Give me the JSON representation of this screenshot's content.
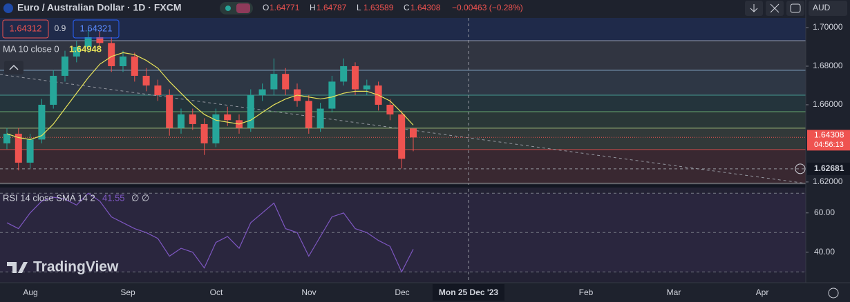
{
  "header": {
    "symbol": "Euro / Australian Dollar · 1D · FXCM",
    "o_label": "O",
    "h_label": "H",
    "l_label": "L",
    "c_label": "C",
    "change": "−0.00463 (−0.28%)",
    "bid": "1.64312",
    "spread": "0.9",
    "ask": "1.64321",
    "currency": "AUD",
    "ma_label": "MA 10 close 0",
    "rsi_label": "RSI 14 close SMA 14 2",
    "rsi_extra": "∅ ∅",
    "logo": "TradingView",
    "countdown": "04:56:13",
    "crosshair_price": "1.62681",
    "crosshair_date": "Mon 25 Dec '23"
  },
  "chart_data": {
    "type": "candlestick",
    "open": [
      1.64,
      1.645,
      1.63,
      1.642,
      1.66,
      1.675,
      1.685,
      1.69,
      1.695,
      1.692,
      1.68,
      1.685,
      1.675,
      1.67,
      1.665,
      1.648,
      1.655,
      1.65,
      1.64,
      1.655,
      1.652,
      1.648,
      1.665,
      1.668,
      1.676,
      1.668,
      1.662,
      1.648,
      1.658,
      1.672,
      1.68,
      1.668,
      1.67,
      1.66,
      1.655,
      1.64771
    ],
    "high": [
      1.648,
      1.648,
      1.645,
      1.663,
      1.678,
      1.688,
      1.693,
      1.699,
      1.698,
      1.695,
      1.688,
      1.687,
      1.679,
      1.673,
      1.668,
      1.658,
      1.658,
      1.653,
      1.658,
      1.659,
      1.655,
      1.668,
      1.671,
      1.684,
      1.679,
      1.671,
      1.665,
      1.661,
      1.675,
      1.684,
      1.682,
      1.673,
      1.672,
      1.663,
      1.657,
      1.64787
    ],
    "low": [
      1.637,
      1.626,
      1.627,
      1.64,
      1.658,
      1.672,
      1.682,
      1.687,
      1.689,
      1.677,
      1.677,
      1.672,
      1.667,
      1.662,
      1.644,
      1.645,
      1.647,
      1.634,
      1.638,
      1.649,
      1.645,
      1.646,
      1.662,
      1.665,
      1.665,
      1.659,
      1.645,
      1.646,
      1.656,
      1.67,
      1.665,
      1.665,
      1.657,
      1.652,
      1.627,
      1.63589
    ],
    "close": [
      1.645,
      1.63,
      1.642,
      1.66,
      1.675,
      1.685,
      1.69,
      1.695,
      1.692,
      1.68,
      1.685,
      1.675,
      1.67,
      1.665,
      1.648,
      1.655,
      1.65,
      1.64,
      1.655,
      1.652,
      1.648,
      1.665,
      1.668,
      1.676,
      1.668,
      1.662,
      1.648,
      1.658,
      1.672,
      1.68,
      1.668,
      1.67,
      1.66,
      1.655,
      1.632,
      1.64308
    ],
    "ma": [
      1.645,
      1.643,
      1.642,
      1.644,
      1.65,
      1.658,
      1.666,
      1.674,
      1.681,
      1.685,
      1.687,
      1.686,
      1.683,
      1.679,
      1.672,
      1.666,
      1.66,
      1.655,
      1.652,
      1.651,
      1.65,
      1.652,
      1.656,
      1.66,
      1.663,
      1.665,
      1.664,
      1.663,
      1.664,
      1.666,
      1.667,
      1.667,
      1.665,
      1.662,
      1.656,
      1.64948
    ],
    "rsi": [
      55,
      52,
      60,
      66,
      68,
      67,
      64,
      70,
      66,
      58,
      55,
      52,
      50,
      47,
      38,
      42,
      40,
      32,
      45,
      48,
      42,
      55,
      60,
      65,
      52,
      50,
      38,
      48,
      58,
      60,
      52,
      50,
      46,
      43,
      30,
      41.55
    ],
    "up_color": "#26a69a",
    "down_color": "#ef5350",
    "ma_color": "#e8e35a",
    "rsi_color": "#7e57c2",
    "ylim": [
      1.61925,
      1.70357
    ],
    "yticks": [
      {
        "value": 1.7,
        "label": "1.70000"
      },
      {
        "value": 1.68,
        "label": "1.68000"
      },
      {
        "value": 1.66,
        "label": "1.66000"
      },
      {
        "value": 1.62,
        "label": "1.62000"
      }
    ],
    "levels": [
      1.6932,
      1.6779,
      1.665,
      1.6564,
      1.6479,
      1.6368,
      1.6193
    ],
    "level_colors": [
      "#b0b8c8",
      "#9ec6e8",
      "#4fb3a5",
      "#7bc67a",
      "#b7d98a",
      "#ef5350",
      "#c8c8c8"
    ],
    "crosshair_value": 1.62681,
    "rsi_ylim": [
      24.5,
      72.9
    ],
    "rsi_yticks": [
      {
        "value": 60,
        "label": "60.00"
      },
      {
        "value": 40,
        "label": "40.00"
      }
    ],
    "rsi_bands": [
      70,
      50,
      30
    ],
    "x_labels": [
      "Aug",
      "Sep",
      "Oct",
      "Nov",
      "Dec",
      "Feb",
      "Mar",
      "Apr"
    ]
  }
}
